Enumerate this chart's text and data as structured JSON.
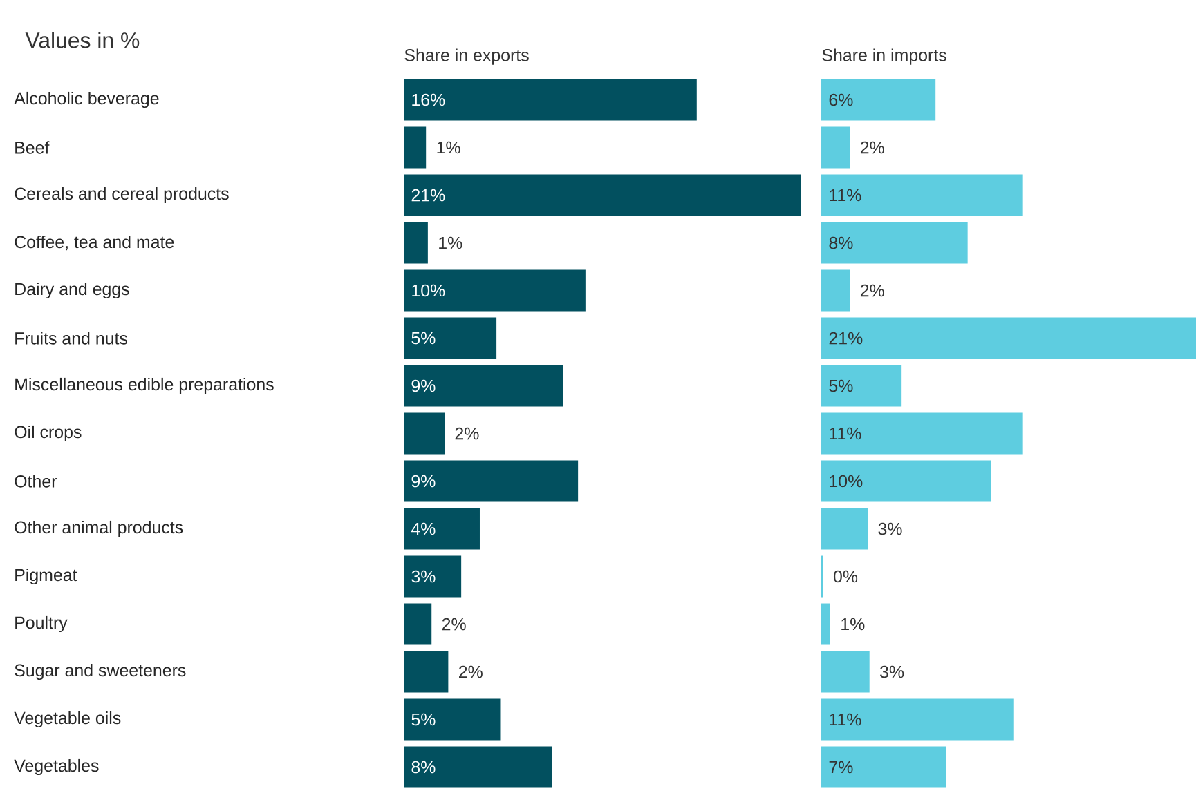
{
  "chart_data": [
    {
      "type": "bar",
      "orientation": "horizontal",
      "title": "Share in exports",
      "annotations": [
        "Values in %"
      ],
      "tick_labels": "y",
      "categories": [
        "Alcoholic beverage",
        "Beef",
        "Cereals and cereal products",
        "Coffee, tea and mate",
        "Dairy and eggs",
        "Fruits and nuts",
        "Miscellaneous edible preparations",
        "Oil crops",
        "Other",
        "Other animal products",
        "Pigmeat",
        "Poultry",
        "Sugar and sweeteners",
        "Vegetable oils",
        "Vegetables"
      ],
      "values": [
        15.8,
        1.2,
        21.4,
        1.3,
        9.8,
        5.0,
        8.6,
        2.2,
        9.4,
        4.1,
        3.1,
        1.5,
        2.4,
        5.2,
        8.0
      ],
      "value_labels": [
        "16%",
        "1%",
        "21%",
        "1%",
        "10%",
        "5%",
        "9%",
        "2%",
        "9%",
        "4%",
        "3%",
        "2%",
        "2%",
        "5%",
        "8%"
      ],
      "color": "#02505f"
    },
    {
      "type": "bar",
      "orientation": "horizontal",
      "title": "Share in imports",
      "tick_labels": false,
      "categories": [
        null,
        null,
        null,
        null,
        null,
        null,
        null,
        null,
        null,
        null,
        null,
        null,
        null,
        null,
        null
      ],
      "values": [
        6.4,
        1.6,
        11.3,
        8.2,
        1.6,
        21.0,
        4.5,
        11.3,
        9.5,
        2.6,
        0.1,
        0.5,
        2.7,
        10.8,
        7.0
      ],
      "value_labels": [
        "6%",
        "2%",
        "11%",
        "8%",
        "2%",
        "21%",
        "5%",
        "11%",
        "10%",
        "3%",
        "0%",
        "1%",
        "3%",
        "11%",
        "7%"
      ],
      "color": "#5ecde0"
    }
  ]
}
